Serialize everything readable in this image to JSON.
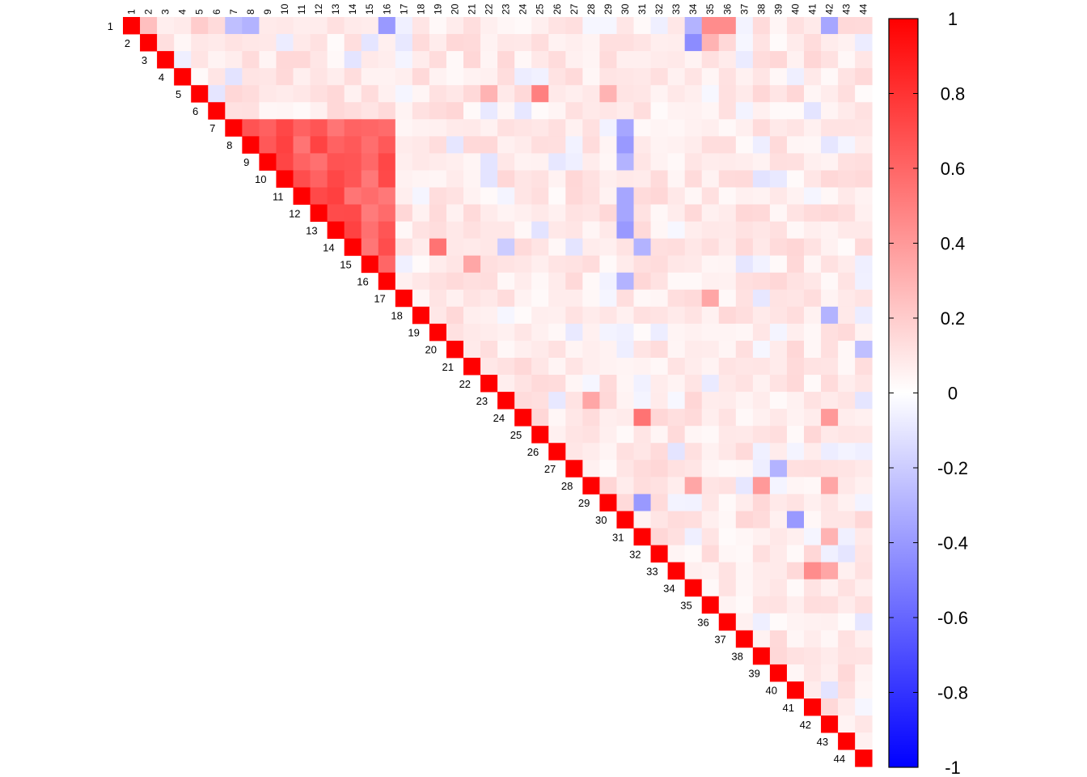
{
  "chart_data": {
    "type": "heatmap",
    "variables": [
      "1",
      "2",
      "3",
      "4",
      "5",
      "6",
      "7",
      "8",
      "9",
      "10",
      "11",
      "12",
      "13",
      "14",
      "15",
      "16",
      "17",
      "18",
      "19",
      "20",
      "21",
      "22",
      "23",
      "24",
      "25",
      "26",
      "27",
      "28",
      "29",
      "30",
      "31",
      "32",
      "33",
      "34",
      "35",
      "36",
      "37",
      "38",
      "39",
      "40",
      "41",
      "42",
      "43",
      "44"
    ],
    "layout": "upper-triangle",
    "value_range": [
      -1,
      1
    ],
    "colorbar": {
      "colors": {
        "low": "#0000ff",
        "mid": "#ffffff",
        "high": "#ff0000"
      },
      "ticks": [
        "-1",
        "-0.8",
        "-0.6",
        "-0.4",
        "-0.2",
        "0",
        "0.2",
        "0.4",
        "0.6",
        "0.8",
        "1"
      ]
    },
    "diagonal_value": 1,
    "strong_block": {
      "rows": [
        7,
        16
      ],
      "cols": [
        7,
        16
      ],
      "approx_value": 0.75
    },
    "notable_values": [
      {
        "row": 1,
        "col": 2,
        "value": 0.25
      },
      {
        "row": 1,
        "col": 5,
        "value": 0.2
      },
      {
        "row": 1,
        "col": 7,
        "value": -0.25
      },
      {
        "row": 1,
        "col": 8,
        "value": -0.3
      },
      {
        "row": 1,
        "col": 16,
        "value": -0.4
      },
      {
        "row": 1,
        "col": 34,
        "value": -0.3
      },
      {
        "row": 1,
        "col": 35,
        "value": 0.45
      },
      {
        "row": 1,
        "col": 36,
        "value": 0.45
      },
      {
        "row": 1,
        "col": 42,
        "value": -0.35
      },
      {
        "row": 2,
        "col": 34,
        "value": -0.45
      },
      {
        "row": 2,
        "col": 35,
        "value": 0.3
      },
      {
        "row": 5,
        "col": 25,
        "value": 0.5
      },
      {
        "row": 5,
        "col": 22,
        "value": 0.3
      },
      {
        "row": 5,
        "col": 29,
        "value": 0.3
      },
      {
        "row": 7,
        "col": 30,
        "value": -0.35
      },
      {
        "row": 8,
        "col": 30,
        "value": -0.4
      },
      {
        "row": 9,
        "col": 30,
        "value": -0.3
      },
      {
        "row": 11,
        "col": 30,
        "value": -0.35
      },
      {
        "row": 12,
        "col": 30,
        "value": -0.35
      },
      {
        "row": 13,
        "col": 30,
        "value": -0.4
      },
      {
        "row": 14,
        "col": 19,
        "value": 0.55
      },
      {
        "row": 14,
        "col": 23,
        "value": -0.2
      },
      {
        "row": 14,
        "col": 31,
        "value": -0.3
      },
      {
        "row": 15,
        "col": 21,
        "value": 0.35
      },
      {
        "row": 16,
        "col": 30,
        "value": -0.3
      },
      {
        "row": 17,
        "col": 35,
        "value": 0.35
      },
      {
        "row": 18,
        "col": 42,
        "value": -0.3
      },
      {
        "row": 20,
        "col": 44,
        "value": -0.25
      },
      {
        "row": 23,
        "col": 28,
        "value": 0.35
      },
      {
        "row": 24,
        "col": 31,
        "value": 0.55
      },
      {
        "row": 24,
        "col": 42,
        "value": 0.4
      },
      {
        "row": 27,
        "col": 39,
        "value": -0.3
      },
      {
        "row": 28,
        "col": 34,
        "value": 0.35
      },
      {
        "row": 28,
        "col": 38,
        "value": 0.4
      },
      {
        "row": 28,
        "col": 42,
        "value": 0.35
      },
      {
        "row": 29,
        "col": 31,
        "value": -0.4
      },
      {
        "row": 30,
        "col": 40,
        "value": -0.4
      },
      {
        "row": 31,
        "col": 42,
        "value": 0.3
      },
      {
        "row": 33,
        "col": 41,
        "value": 0.45
      },
      {
        "row": 33,
        "col": 42,
        "value": 0.35
      }
    ]
  }
}
